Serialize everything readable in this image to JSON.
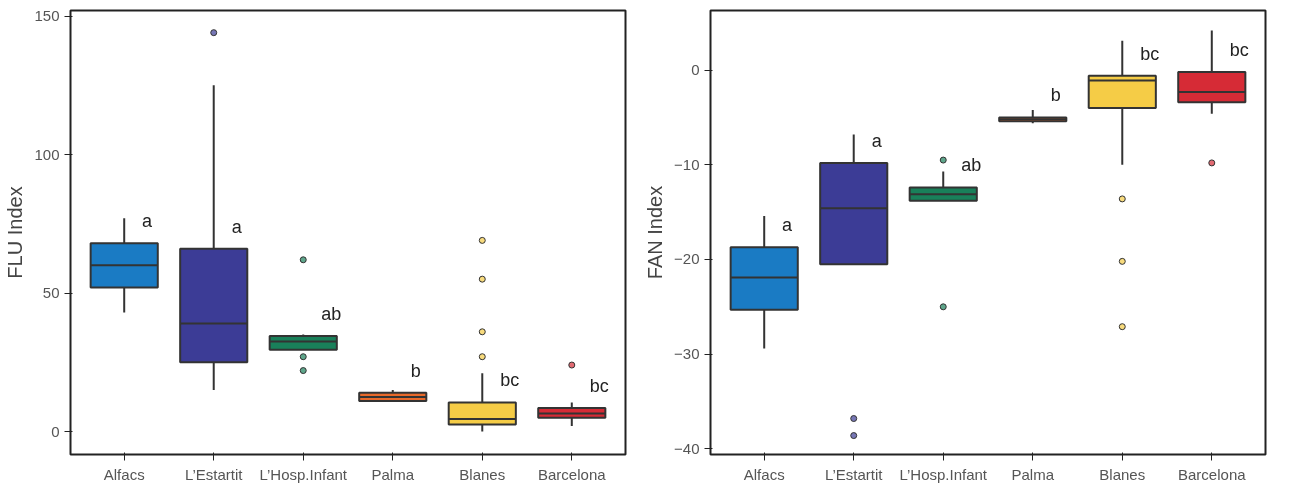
{
  "chart_data": [
    {
      "type": "box",
      "ylabel": "FLU Index",
      "categories": [
        "Alfacs",
        "L’Estartit",
        "L’Hosp.Infant",
        "Palma",
        "Blanes",
        "Barcelona"
      ],
      "colors": [
        "#1a7bc4",
        "#3c3c96",
        "#19805a",
        "#e8692a",
        "#f5cc46",
        "#d62b36"
      ],
      "boxes": [
        {
          "low": 43,
          "q1": 52,
          "median": 60,
          "q3": 68,
          "high": 77
        },
        {
          "low": 15,
          "q1": 25,
          "median": 39,
          "q3": 66,
          "high": 125,
          "outliers": [
            144
          ]
        },
        {
          "low": 29.5,
          "q1": 29.5,
          "median": 32.5,
          "q3": 34.5,
          "high": 35,
          "outliers": [
            62,
            27,
            22
          ]
        },
        {
          "low": 11,
          "q1": 11,
          "median": 12.5,
          "q3": 14,
          "high": 15
        },
        {
          "low": 0,
          "q1": 2.5,
          "median": 4.5,
          "q3": 10.5,
          "high": 21,
          "outliers": [
            69,
            55,
            36,
            27
          ]
        },
        {
          "low": 2,
          "q1": 5,
          "median": 6.5,
          "q3": 8.5,
          "high": 10.5,
          "outliers": [
            24
          ]
        }
      ],
      "annotations": [
        "a",
        "a",
        "ab",
        "b",
        "bc",
        "bc"
      ],
      "ylim": [
        -8.3,
        152
      ],
      "yticks": [
        0,
        50,
        100,
        150
      ],
      "grid": false
    },
    {
      "type": "box",
      "ylabel": "FAN Index",
      "categories": [
        "Alfacs",
        "L’Estartit",
        "L’Hosp.Infant",
        "Palma",
        "Blanes",
        "Barcelona"
      ],
      "colors": [
        "#1a7bc4",
        "#3c3c96",
        "#19805a",
        "#e8692a",
        "#f5cc46",
        "#d62b36"
      ],
      "boxes": [
        {
          "low": -29.4,
          "q1": -25.3,
          "median": -21.9,
          "q3": -18.7,
          "high": -15.4
        },
        {
          "low": -20.5,
          "q1": -20.5,
          "median": -14.6,
          "q3": -9.8,
          "high": -6.8,
          "outliers": [
            -36.8,
            -38.6
          ]
        },
        {
          "low": -13.8,
          "q1": -13.8,
          "median": -13.1,
          "q3": -12.4,
          "high": -10.7,
          "outliers": [
            -9.5,
            -25
          ]
        },
        {
          "low": -5.6,
          "q1": -5.4,
          "median": -5.2,
          "q3": -5,
          "high": -4.2
        },
        {
          "low": -10,
          "q1": -4,
          "median": -1.1,
          "q3": -0.6,
          "high": 3.1,
          "outliers": [
            -13.6,
            -20.2,
            -27.1
          ]
        },
        {
          "low": -4.6,
          "q1": -3.4,
          "median": -2.3,
          "q3": -0.2,
          "high": 4.2,
          "outliers": [
            -9.8
          ]
        }
      ],
      "annotations": [
        "a",
        "a",
        "ab",
        "b",
        "bc",
        "bc"
      ],
      "ylim": [
        -40.6,
        6.3
      ],
      "yticks": [
        -40,
        -30,
        -20,
        -10,
        0
      ],
      "grid": false
    }
  ]
}
